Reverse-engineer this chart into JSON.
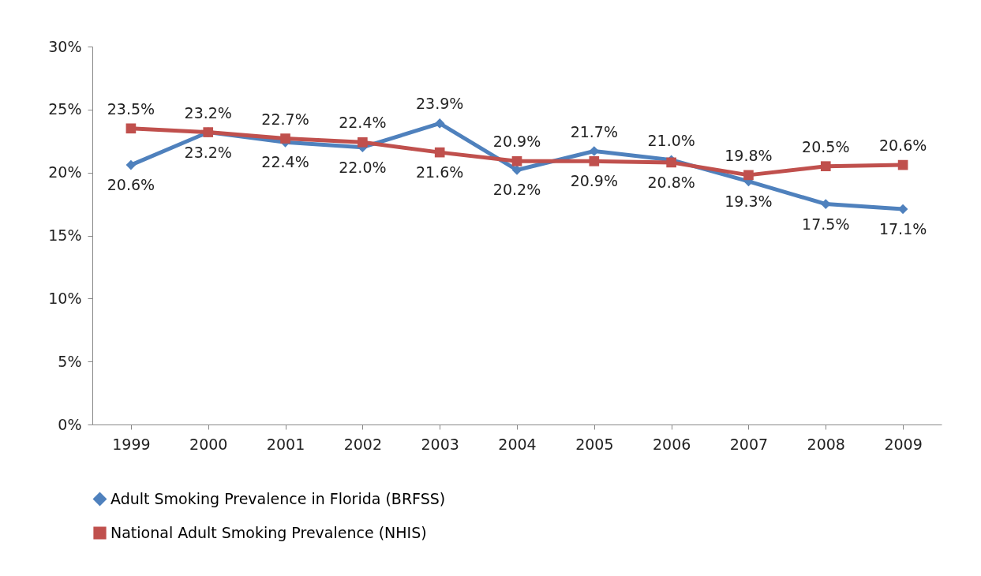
{
  "chart_data": {
    "type": "line",
    "categories": [
      "1999",
      "2000",
      "2001",
      "2002",
      "2003",
      "2004",
      "2005",
      "2006",
      "2007",
      "2008",
      "2009"
    ],
    "series": [
      {
        "name": "Adult Smoking Prevalence in Florida (BRFSS)",
        "color": "#4f81bd",
        "marker": "diamond",
        "values": [
          20.6,
          23.2,
          22.4,
          22.0,
          23.9,
          20.2,
          21.7,
          21.0,
          19.3,
          17.5,
          17.1
        ],
        "value_labels": [
          "20.6%",
          "23.2%",
          "22.4%",
          "22.0%",
          "23.9%",
          "20.2%",
          "21.7%",
          "21.0%",
          "19.3%",
          "17.5%",
          "17.1%"
        ]
      },
      {
        "name": "National Adult Smoking Prevalence (NHIS)",
        "color": "#c0504d",
        "marker": "square",
        "values": [
          23.5,
          23.2,
          22.7,
          22.4,
          21.6,
          20.9,
          20.9,
          20.8,
          19.8,
          20.5,
          20.6
        ],
        "value_labels": [
          "23.5%",
          "23.2%",
          "22.7%",
          "22.4%",
          "21.6%",
          "20.9%",
          "20.9%",
          "20.8%",
          "19.8%",
          "20.5%",
          "20.6%"
        ]
      }
    ],
    "ylim": [
      0,
      30
    ],
    "yticks": [
      {
        "value": 0,
        "label": "0%"
      },
      {
        "value": 5,
        "label": "5%"
      },
      {
        "value": 10,
        "label": "10%"
      },
      {
        "value": 15,
        "label": "15%"
      },
      {
        "value": 20,
        "label": "20%"
      },
      {
        "value": 25,
        "label": "25%"
      },
      {
        "value": 30,
        "label": "30%"
      }
    ],
    "grid": false,
    "legend": "bottom",
    "line_style": "solid"
  }
}
